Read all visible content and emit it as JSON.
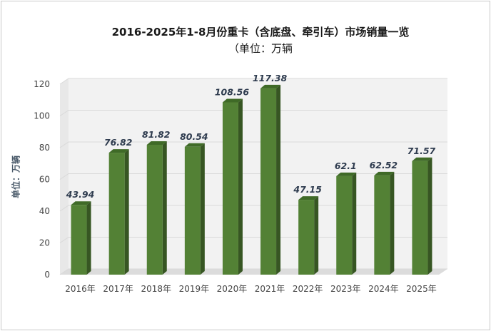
{
  "chart_data": {
    "type": "bar",
    "title": "2016-2025年1-8月份重卡（含底盘、牵引车）市场销量一览",
    "subtitle": "（单位：万辆",
    "ylabel": "单位：万辆",
    "xlabel": "",
    "categories": [
      "2016年",
      "2017年",
      "2018年",
      "2019年",
      "2020年",
      "2021年",
      "2022年",
      "2023年",
      "2024年",
      "2025年"
    ],
    "values": [
      43.94,
      76.82,
      81.82,
      80.54,
      108.56,
      117.38,
      47.15,
      62.1,
      62.52,
      71.57
    ],
    "value_labels": [
      "43.94",
      "76.82",
      "81.82",
      "80.54",
      "108.56",
      "117.38",
      "47.15",
      "62.1",
      "62.52",
      "71.57"
    ],
    "ylim": [
      0,
      120
    ],
    "yticks": [
      "0",
      "20",
      "40",
      "60",
      "80",
      "100",
      "120"
    ],
    "grid": true,
    "legend": "none",
    "colors": {
      "bar_front": "#538135",
      "bar_side": "#375623",
      "bar_top": "#3f6a27",
      "grid": "#d9d9d9",
      "wall": "#f2f2f2"
    }
  }
}
